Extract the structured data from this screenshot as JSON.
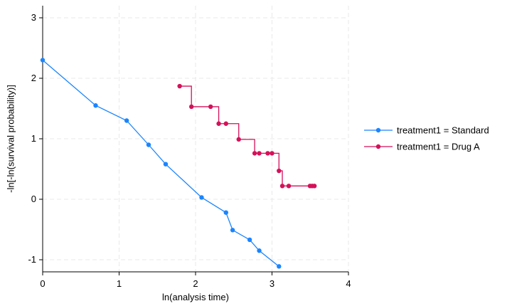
{
  "chart_data": {
    "type": "line",
    "xlabel": "ln(analysis time)",
    "ylabel": "-ln[-ln(survival probability)]",
    "xlim": [
      0,
      4
    ],
    "ylim": [
      -1.2,
      3.2
    ],
    "xticks": [
      0,
      1,
      2,
      3,
      4
    ],
    "yticks": [
      -1,
      0,
      1,
      2,
      3
    ],
    "xtick_labels": [
      "0",
      "1",
      "2",
      "3",
      "4"
    ],
    "ytick_labels": [
      "-1",
      "0",
      "1",
      "2",
      "3"
    ],
    "grid": true,
    "legend_position": "right",
    "series": [
      {
        "name": "treatment1 = Standard",
        "color": "#1a85ff",
        "step": false,
        "x": [
          0.0,
          0.693,
          1.099,
          1.386,
          1.609,
          2.079,
          2.398,
          2.485,
          2.708,
          2.833,
          3.091
        ],
        "y": [
          2.3,
          1.55,
          1.3,
          0.9,
          0.58,
          0.03,
          -0.22,
          -0.51,
          -0.67,
          -0.85,
          -1.11
        ]
      },
      {
        "name": "treatment1 = Drug A",
        "color": "#d41159",
        "step": true,
        "x": [
          1.792,
          1.946,
          2.197,
          2.303,
          2.398,
          2.565,
          2.773,
          2.833,
          2.944,
          3.0,
          3.091,
          3.135,
          3.219,
          3.497,
          3.526,
          3.555
        ],
        "y": [
          1.87,
          1.53,
          1.53,
          1.25,
          1.25,
          0.99,
          0.76,
          0.76,
          0.76,
          0.76,
          0.47,
          0.22,
          0.22,
          0.22,
          0.22,
          0.22
        ]
      }
    ]
  }
}
